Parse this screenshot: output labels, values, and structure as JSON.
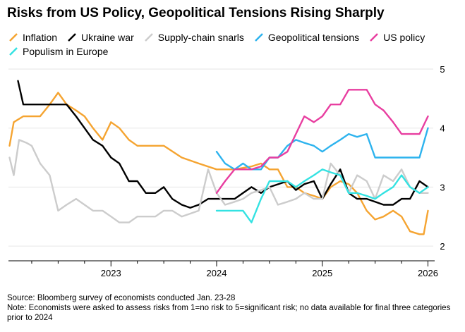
{
  "chart_data": {
    "type": "line",
    "title": "Risks from US Policy, Geopolitical Tensions Rising Sharply",
    "xlabel": "",
    "ylabel": "",
    "ylim": [
      1.75,
      5
    ],
    "yticks": [
      2,
      3,
      4,
      5
    ],
    "xlim": [
      2022.03,
      2026.05
    ],
    "xticks": [
      {
        "value": 2023,
        "label": "2023"
      },
      {
        "value": 2024,
        "label": "2024"
      },
      {
        "value": 2025,
        "label": "2025"
      },
      {
        "value": 2026,
        "label": "2026"
      }
    ],
    "legend_position": "top",
    "series": [
      {
        "name": "Inflation",
        "color": "#f5a431",
        "points": [
          [
            2022.04,
            3.7
          ],
          [
            2022.08,
            4.1
          ],
          [
            2022.17,
            4.2
          ],
          [
            2022.25,
            4.2
          ],
          [
            2022.33,
            4.2
          ],
          [
            2022.42,
            4.4
          ],
          [
            2022.5,
            4.6
          ],
          [
            2022.58,
            4.4
          ],
          [
            2022.67,
            4.3
          ],
          [
            2022.75,
            4.2
          ],
          [
            2022.83,
            4.0
          ],
          [
            2022.92,
            3.8
          ],
          [
            2023.0,
            4.1
          ],
          [
            2023.08,
            4.0
          ],
          [
            2023.17,
            3.8
          ],
          [
            2023.25,
            3.7
          ],
          [
            2023.33,
            3.7
          ],
          [
            2023.5,
            3.7
          ],
          [
            2023.67,
            3.5
          ],
          [
            2023.83,
            3.4
          ],
          [
            2024.0,
            3.3
          ],
          [
            2024.17,
            3.3
          ],
          [
            2024.33,
            3.35
          ],
          [
            2024.42,
            3.4
          ],
          [
            2024.5,
            3.3
          ],
          [
            2024.58,
            3.3
          ],
          [
            2024.67,
            3.0
          ],
          [
            2024.75,
            3.0
          ],
          [
            2024.83,
            2.9
          ],
          [
            2024.92,
            2.85
          ],
          [
            2025.0,
            2.8
          ],
          [
            2025.08,
            3.0
          ],
          [
            2025.17,
            3.1
          ],
          [
            2025.25,
            3.05
          ],
          [
            2025.33,
            2.9
          ],
          [
            2025.42,
            2.6
          ],
          [
            2025.5,
            2.45
          ],
          [
            2025.58,
            2.5
          ],
          [
            2025.67,
            2.6
          ],
          [
            2025.75,
            2.5
          ],
          [
            2025.83,
            2.25
          ],
          [
            2025.92,
            2.2
          ],
          [
            2025.96,
            2.2
          ],
          [
            2026.0,
            2.6
          ]
        ]
      },
      {
        "name": "Ukraine war",
        "color": "#000000",
        "points": [
          [
            2022.12,
            4.8
          ],
          [
            2022.17,
            4.4
          ],
          [
            2022.25,
            4.4
          ],
          [
            2022.33,
            4.4
          ],
          [
            2022.42,
            4.4
          ],
          [
            2022.5,
            4.4
          ],
          [
            2022.58,
            4.4
          ],
          [
            2022.67,
            4.2
          ],
          [
            2022.75,
            4.0
          ],
          [
            2022.83,
            3.8
          ],
          [
            2022.92,
            3.7
          ],
          [
            2023.0,
            3.5
          ],
          [
            2023.08,
            3.4
          ],
          [
            2023.17,
            3.1
          ],
          [
            2023.25,
            3.1
          ],
          [
            2023.33,
            2.9
          ],
          [
            2023.42,
            2.9
          ],
          [
            2023.5,
            3.0
          ],
          [
            2023.58,
            2.8
          ],
          [
            2023.67,
            2.7
          ],
          [
            2023.75,
            2.65
          ],
          [
            2023.83,
            2.7
          ],
          [
            2023.92,
            2.8
          ],
          [
            2024.0,
            2.8
          ],
          [
            2024.17,
            2.8
          ],
          [
            2024.33,
            3.0
          ],
          [
            2024.42,
            2.9
          ],
          [
            2024.5,
            3.0
          ],
          [
            2024.67,
            3.1
          ],
          [
            2024.75,
            2.95
          ],
          [
            2024.83,
            3.05
          ],
          [
            2024.92,
            3.1
          ],
          [
            2025.0,
            2.8
          ],
          [
            2025.08,
            3.05
          ],
          [
            2025.17,
            3.3
          ],
          [
            2025.25,
            2.9
          ],
          [
            2025.33,
            2.8
          ],
          [
            2025.42,
            2.8
          ],
          [
            2025.5,
            2.75
          ],
          [
            2025.58,
            2.7
          ],
          [
            2025.67,
            2.7
          ],
          [
            2025.75,
            2.8
          ],
          [
            2025.83,
            2.8
          ],
          [
            2025.92,
            3.1
          ],
          [
            2026.0,
            3.0
          ]
        ]
      },
      {
        "name": "Supply-chain snarls",
        "color": "#cccccc",
        "points": [
          [
            2022.04,
            3.5
          ],
          [
            2022.08,
            3.2
          ],
          [
            2022.13,
            3.8
          ],
          [
            2022.2,
            3.75
          ],
          [
            2022.25,
            3.7
          ],
          [
            2022.33,
            3.4
          ],
          [
            2022.42,
            3.2
          ],
          [
            2022.5,
            2.6
          ],
          [
            2022.58,
            2.7
          ],
          [
            2022.67,
            2.8
          ],
          [
            2022.75,
            2.7
          ],
          [
            2022.83,
            2.6
          ],
          [
            2022.92,
            2.6
          ],
          [
            2023.0,
            2.5
          ],
          [
            2023.08,
            2.4
          ],
          [
            2023.17,
            2.4
          ],
          [
            2023.25,
            2.5
          ],
          [
            2023.33,
            2.5
          ],
          [
            2023.42,
            2.5
          ],
          [
            2023.5,
            2.6
          ],
          [
            2023.58,
            2.6
          ],
          [
            2023.67,
            2.5
          ],
          [
            2023.83,
            2.6
          ],
          [
            2023.92,
            3.3
          ],
          [
            2024.0,
            2.9
          ],
          [
            2024.08,
            2.7
          ],
          [
            2024.17,
            2.75
          ],
          [
            2024.25,
            2.8
          ],
          [
            2024.33,
            2.9
          ],
          [
            2024.42,
            2.95
          ],
          [
            2024.5,
            3.0
          ],
          [
            2024.58,
            2.7
          ],
          [
            2024.67,
            2.75
          ],
          [
            2024.75,
            2.8
          ],
          [
            2024.83,
            2.9
          ],
          [
            2024.92,
            2.8
          ],
          [
            2025.0,
            2.8
          ],
          [
            2025.08,
            3.4
          ],
          [
            2025.17,
            3.2
          ],
          [
            2025.25,
            2.9
          ],
          [
            2025.33,
            3.2
          ],
          [
            2025.42,
            3.1
          ],
          [
            2025.5,
            2.8
          ],
          [
            2025.58,
            3.2
          ],
          [
            2025.67,
            3.1
          ],
          [
            2025.75,
            3.3
          ],
          [
            2025.83,
            3.0
          ],
          [
            2025.92,
            2.9
          ],
          [
            2026.0,
            2.9
          ]
        ]
      },
      {
        "name": "Geopolitical tensions",
        "color": "#2db3ee",
        "points": [
          [
            2024.0,
            3.6
          ],
          [
            2024.08,
            3.4
          ],
          [
            2024.17,
            3.3
          ],
          [
            2024.25,
            3.4
          ],
          [
            2024.33,
            3.3
          ],
          [
            2024.42,
            3.3
          ],
          [
            2024.5,
            3.5
          ],
          [
            2024.58,
            3.5
          ],
          [
            2024.67,
            3.7
          ],
          [
            2024.75,
            3.8
          ],
          [
            2024.83,
            3.75
          ],
          [
            2024.92,
            3.7
          ],
          [
            2025.0,
            3.6
          ],
          [
            2025.08,
            3.7
          ],
          [
            2025.17,
            3.8
          ],
          [
            2025.25,
            3.9
          ],
          [
            2025.33,
            3.85
          ],
          [
            2025.42,
            3.9
          ],
          [
            2025.5,
            3.5
          ],
          [
            2025.58,
            3.5
          ],
          [
            2025.67,
            3.5
          ],
          [
            2025.75,
            3.5
          ],
          [
            2025.83,
            3.5
          ],
          [
            2025.92,
            3.5
          ],
          [
            2026.0,
            4.0
          ]
        ]
      },
      {
        "name": "US policy",
        "color": "#e83ea0",
        "points": [
          [
            2024.0,
            2.9
          ],
          [
            2024.08,
            3.1
          ],
          [
            2024.17,
            3.3
          ],
          [
            2024.25,
            3.3
          ],
          [
            2024.33,
            3.3
          ],
          [
            2024.42,
            3.35
          ],
          [
            2024.5,
            3.5
          ],
          [
            2024.58,
            3.5
          ],
          [
            2024.67,
            3.6
          ],
          [
            2024.75,
            3.9
          ],
          [
            2024.83,
            4.2
          ],
          [
            2024.92,
            4.1
          ],
          [
            2025.0,
            4.2
          ],
          [
            2025.08,
            4.4
          ],
          [
            2025.17,
            4.4
          ],
          [
            2025.25,
            4.65
          ],
          [
            2025.33,
            4.65
          ],
          [
            2025.42,
            4.65
          ],
          [
            2025.5,
            4.4
          ],
          [
            2025.58,
            4.3
          ],
          [
            2025.67,
            4.1
          ],
          [
            2025.75,
            3.9
          ],
          [
            2025.83,
            3.9
          ],
          [
            2025.92,
            3.9
          ],
          [
            2026.0,
            4.2
          ]
        ]
      },
      {
        "name": "Populism in Europe",
        "color": "#34e2e2",
        "points": [
          [
            2024.0,
            2.6
          ],
          [
            2024.08,
            2.6
          ],
          [
            2024.17,
            2.6
          ],
          [
            2024.25,
            2.6
          ],
          [
            2024.33,
            2.4
          ],
          [
            2024.42,
            2.8
          ],
          [
            2024.5,
            3.1
          ],
          [
            2024.58,
            3.1
          ],
          [
            2024.67,
            3.1
          ],
          [
            2024.75,
            3.0
          ],
          [
            2024.83,
            3.1
          ],
          [
            2024.92,
            3.2
          ],
          [
            2025.0,
            3.3
          ],
          [
            2025.08,
            3.25
          ],
          [
            2025.17,
            3.2
          ],
          [
            2025.25,
            2.9
          ],
          [
            2025.33,
            2.9
          ],
          [
            2025.42,
            2.85
          ],
          [
            2025.5,
            2.8
          ],
          [
            2025.58,
            2.9
          ],
          [
            2025.67,
            3.0
          ],
          [
            2025.75,
            3.2
          ],
          [
            2025.83,
            3.0
          ],
          [
            2025.92,
            2.9
          ],
          [
            2026.0,
            3.0
          ]
        ]
      }
    ]
  },
  "notes": {
    "source": "Source: Bloomberg survey of economists conducted Jan. 23-28",
    "note": "Note: Economists were asked to assess risks from 1=no risk to 5=significant risk; no data available for final three categories prior to 2024"
  }
}
